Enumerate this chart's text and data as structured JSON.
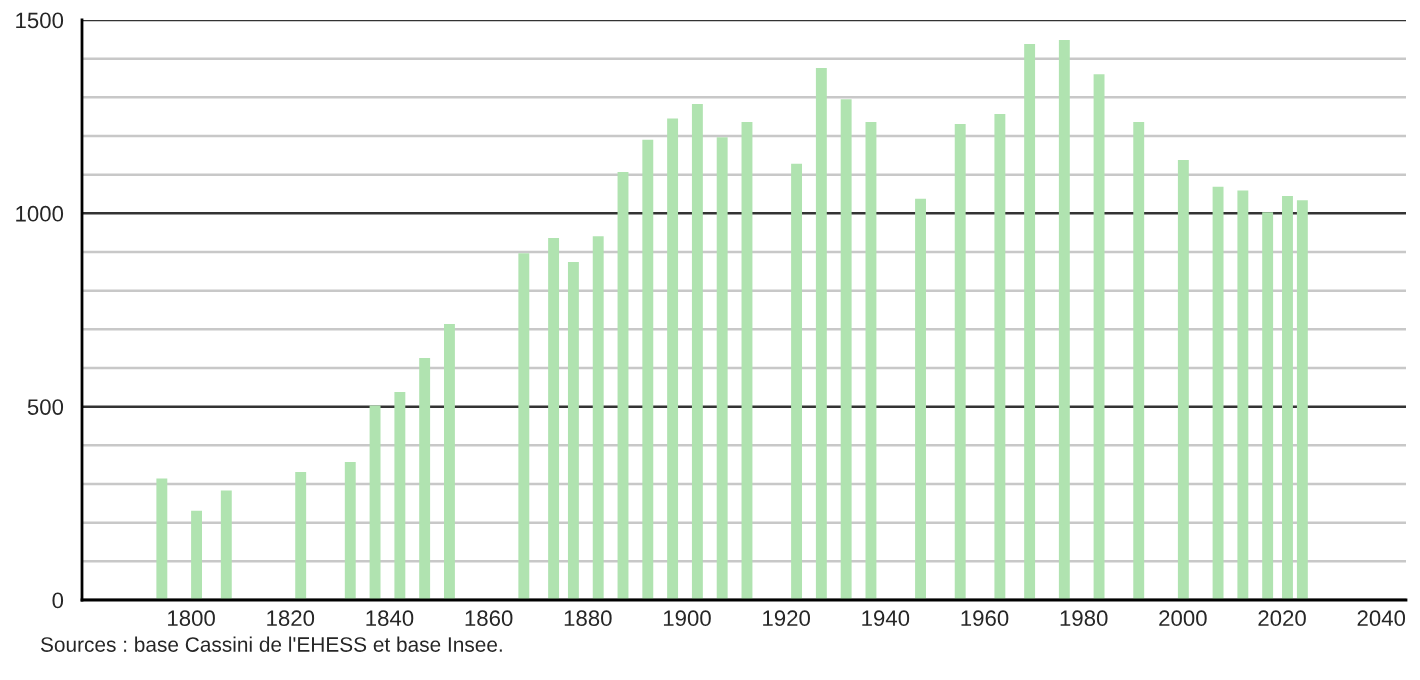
{
  "chart_data": {
    "type": "bar",
    "color": "#b0e3b0",
    "grid": "y",
    "x": [
      1793,
      1800,
      1806,
      1821,
      1831,
      1836,
      1841,
      1846,
      1851,
      1866,
      1872,
      1876,
      1881,
      1886,
      1891,
      1896,
      1901,
      1906,
      1911,
      1921,
      1926,
      1931,
      1936,
      1946,
      1954,
      1962,
      1968,
      1975,
      1982,
      1990,
      1999,
      2006,
      2011,
      2016,
      2020,
      2023
    ],
    "values": [
      314,
      231,
      283,
      331,
      357,
      503,
      538,
      626,
      714,
      897,
      936,
      874,
      941,
      1107,
      1190,
      1245,
      1283,
      1197,
      1236,
      1128,
      1376,
      1295,
      1236,
      1038,
      1231,
      1257,
      1438,
      1448,
      1360,
      1236,
      1138,
      1069,
      1059,
      1003,
      1045,
      1034
    ],
    "xlim": [
      1778,
      2045
    ],
    "xticks": [
      1800,
      1820,
      1840,
      1860,
      1880,
      1900,
      1920,
      1940,
      1960,
      1980,
      2000,
      2020,
      2040
    ],
    "ylim": [
      0,
      1500
    ],
    "yticks": [
      0,
      {
        "value": 100,
        "label": null
      },
      {
        "value": 200,
        "label": null
      },
      {
        "value": 300,
        "label": null
      },
      {
        "value": 400,
        "label": null
      },
      500,
      {
        "value": 600,
        "label": null
      },
      {
        "value": 700,
        "label": null
      },
      {
        "value": 800,
        "label": null
      },
      {
        "value": 900,
        "label": null
      },
      1000,
      {
        "value": 1100,
        "label": null
      },
      {
        "value": 1200,
        "label": null
      },
      {
        "value": 1300,
        "label": null
      },
      {
        "value": 1400,
        "label": null
      },
      1500
    ],
    "annotations": [
      "Sources : base Cassini de l'EHESS et base Insee."
    ]
  }
}
